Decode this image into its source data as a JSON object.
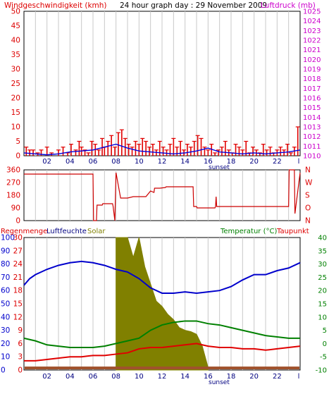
{
  "colors": {
    "background": "#ffffff",
    "frame": "#000000",
    "grid": "#c8c8c8",
    "wind": "#e00000",
    "pressure": "#0000e0",
    "direction": "#cc0000",
    "humidity": "#0000cc",
    "solar": "#808000",
    "temperature": "#008000",
    "dewpoint": "#e00000",
    "rain": "#a0522d",
    "left_axis_red": "#dd0000",
    "right_axis_magenta": "#cc00cc",
    "right_axis_green": "#008000",
    "humidity_label": "#000080",
    "solar_label": "#808000"
  },
  "header": {
    "wind_label": "Windgeschwindigkeit (kmh)",
    "title": "24 hour graph day : 29 November 2009",
    "pressure_label": "Luftdruck (mb)"
  },
  "legend3": {
    "rain": "Regenmenge",
    "humidity": "Luftfeuchte",
    "solar": "Solar",
    "temperature": "Temperatur (°C)",
    "dewpoint": "Taupunkt"
  },
  "sunset_label": "sunset",
  "chart_data": [
    {
      "type": "bar",
      "title": "24 hour graph day : 29 November 2009",
      "ylabel": "Windgeschwindigkeit (kmh)",
      "y2label": "Luftdruck (mb)",
      "x_ticks": [
        "02",
        "04",
        "06",
        "08",
        "10",
        "12",
        "14",
        "16",
        "18",
        "20",
        "22",
        "l"
      ],
      "ylim": [
        0,
        50
      ],
      "y_ticks": [
        0,
        5,
        10,
        15,
        20,
        25,
        30,
        35,
        40,
        45,
        50
      ],
      "y2lim": [
        1010,
        1025
      ],
      "y2_ticks": [
        1010,
        1011,
        1012,
        1013,
        1014,
        1015,
        1016,
        1017,
        1018,
        1019,
        1020,
        1021,
        1022,
        1023,
        1024,
        1025
      ],
      "grid": true,
      "series": [
        {
          "name": "Windgeschwindigkeit (kmh)",
          "x": [
            0.2,
            0.5,
            0.8,
            1.2,
            1.5,
            2.0,
            2.4,
            3.0,
            3.4,
            3.8,
            4.1,
            4.5,
            4.8,
            5.0,
            5.3,
            5.6,
            5.9,
            6.2,
            6.5,
            6.8,
            7.0,
            7.3,
            7.6,
            7.9,
            8.2,
            8.5,
            8.8,
            9.1,
            9.4,
            9.7,
            10.0,
            10.3,
            10.6,
            10.9,
            11.2,
            11.5,
            11.8,
            12.1,
            12.4,
            12.7,
            13.0,
            13.3,
            13.6,
            13.9,
            14.2,
            14.5,
            14.8,
            15.1,
            15.4,
            15.7,
            16.0,
            16.3,
            16.6,
            16.9,
            17.2,
            17.5,
            17.8,
            18.1,
            18.4,
            18.7,
            19.0,
            19.3,
            19.6,
            19.9,
            20.2,
            20.5,
            20.8,
            21.1,
            21.4,
            21.7,
            22.0,
            22.3,
            22.6,
            22.9,
            23.2,
            23.5,
            23.8
          ],
          "values": [
            3,
            2,
            2,
            1,
            2,
            3,
            1,
            2,
            3,
            1,
            4,
            2,
            5,
            3,
            2,
            1,
            5,
            4,
            2,
            6,
            3,
            5,
            7,
            3,
            8,
            9,
            6,
            4,
            3,
            5,
            4,
            6,
            5,
            3,
            4,
            2,
            5,
            3,
            2,
            4,
            6,
            3,
            5,
            2,
            4,
            3,
            5,
            7,
            6,
            3,
            2,
            4,
            1,
            2,
            3,
            5,
            2,
            1,
            4,
            3,
            2,
            5,
            1,
            3,
            2,
            1,
            4,
            2,
            3,
            1,
            2,
            3,
            2,
            4,
            1,
            3,
            10
          ]
        },
        {
          "name": "Luftdruck (mb)",
          "x": [
            0,
            1,
            2,
            3,
            4,
            5,
            6,
            7,
            8,
            9,
            10,
            11,
            12,
            13,
            14,
            15,
            16,
            17,
            18,
            19,
            20,
            21,
            22,
            23,
            24
          ],
          "values": [
            1010.3,
            1010.2,
            1010.1,
            1010.2,
            1010.4,
            1010.5,
            1010.6,
            1010.9,
            1011.2,
            1010.8,
            1010.5,
            1010.4,
            1010.3,
            1010.2,
            1010.3,
            1010.5,
            1010.8,
            1010.4,
            1010.3,
            1010.2,
            1010.3,
            1010.2,
            1010.3,
            1010.4,
            1010.6
          ]
        }
      ]
    },
    {
      "type": "line",
      "ylabel": "Windrichtung",
      "ylim": [
        0,
        360
      ],
      "y_ticks": [
        0,
        90,
        180,
        270,
        360
      ],
      "y2_ticks": [
        "N",
        "O",
        "S",
        "W",
        "N"
      ],
      "series": [
        {
          "name": "Windrichtung",
          "x": [
            0,
            6,
            6.05,
            6.3,
            6.35,
            6.8,
            6.85,
            7.7,
            7.75,
            7.9,
            8.0,
            8.4,
            9.0,
            9.5,
            9.55,
            10.6,
            11.0,
            11.3,
            11.35,
            11.8,
            12.3,
            12.35,
            13.5,
            14.7,
            14.75,
            15.0,
            15.05,
            16.6,
            16.65,
            16.7,
            16.75,
            18.0,
            18.5,
            19.0,
            20.0,
            20.5,
            21.0,
            22.0,
            23.0,
            23.05,
            23.5,
            23.55,
            24
          ],
          "values": [
            330,
            330,
            0,
            0,
            110,
            110,
            120,
            120,
            100,
            0,
            340,
            160,
            160,
            170,
            170,
            170,
            210,
            200,
            230,
            230,
            235,
            240,
            240,
            240,
            100,
            100,
            90,
            90,
            100,
            170,
            100,
            100,
            100,
            100,
            100,
            100,
            100,
            100,
            100,
            360,
            360,
            50,
            340
          ]
        }
      ]
    },
    {
      "type": "line",
      "legend": [
        "Regenmenge",
        "Luftfeuchte",
        "Solar",
        "Temperatur (°C)",
        "Taupunkt"
      ],
      "humidity_ticks": [
        0,
        10,
        20,
        30,
        40,
        50,
        60,
        70,
        80,
        90,
        100
      ],
      "rain_ticks": [
        0,
        3,
        6,
        9,
        12,
        15,
        18,
        21,
        24,
        27,
        30
      ],
      "temp_ticks": [
        -10,
        -5,
        0,
        5,
        10,
        15,
        20,
        25,
        30,
        35,
        40
      ],
      "humidity_lim": [
        0,
        100
      ],
      "temp_lim": [
        -10,
        40
      ],
      "series": [
        {
          "name": "Luftfeuchte",
          "x": [
            0,
            0.5,
            1,
            2,
            3,
            4,
            5,
            6,
            7,
            8,
            9,
            10,
            11,
            12,
            13,
            14,
            15,
            16,
            17,
            18,
            19,
            20,
            21,
            22,
            23,
            24
          ],
          "values": [
            64,
            69,
            72,
            76,
            79,
            81,
            82,
            81,
            79,
            76,
            74,
            69,
            62,
            58,
            58,
            59,
            58,
            59,
            60,
            63,
            68,
            72,
            72,
            75,
            77,
            81
          ]
        },
        {
          "name": "Solar",
          "x": [
            8.0,
            8.5,
            9.0,
            9.5,
            10.0,
            10.5,
            11.0,
            11.5,
            12.0,
            12.5,
            13.0,
            13.5,
            14.0,
            14.5,
            15.0,
            15.5,
            16.0
          ],
          "values": [
            100,
            100,
            100,
            85,
            100,
            78,
            65,
            52,
            48,
            42,
            38,
            32,
            30,
            29,
            27,
            18,
            2
          ]
        },
        {
          "name": "Temperatur (°C)",
          "x": [
            0,
            1,
            2,
            3,
            4,
            5,
            6,
            7,
            8,
            9,
            10,
            11,
            12,
            13,
            14,
            15,
            16,
            17,
            18,
            19,
            20,
            21,
            22,
            23,
            24
          ],
          "values": [
            2,
            1,
            -0.5,
            -1,
            -1.5,
            -1.5,
            -1.5,
            -1,
            0,
            1,
            2,
            5,
            7,
            8,
            8.5,
            8.5,
            7.5,
            7,
            6,
            5,
            4,
            3,
            2.5,
            2,
            2
          ]
        },
        {
          "name": "Taupunkt",
          "x": [
            0,
            1,
            2,
            3,
            4,
            5,
            6,
            7,
            8,
            9,
            10,
            11,
            12,
            13,
            14,
            15,
            16,
            17,
            18,
            19,
            20,
            21,
            22,
            23,
            24
          ],
          "values": [
            -6.5,
            -6.5,
            -6,
            -5.5,
            -5,
            -5,
            -4.5,
            -4.5,
            -4,
            -3.5,
            -2,
            -1.5,
            -1.5,
            -1,
            -0.5,
            0,
            -1,
            -1.5,
            -1.5,
            -2,
            -2,
            -2.5,
            -2,
            -1.5,
            -1
          ]
        },
        {
          "name": "Regenmenge",
          "x": [
            0,
            24
          ],
          "values": [
            0.5,
            0.5
          ]
        }
      ]
    }
  ]
}
